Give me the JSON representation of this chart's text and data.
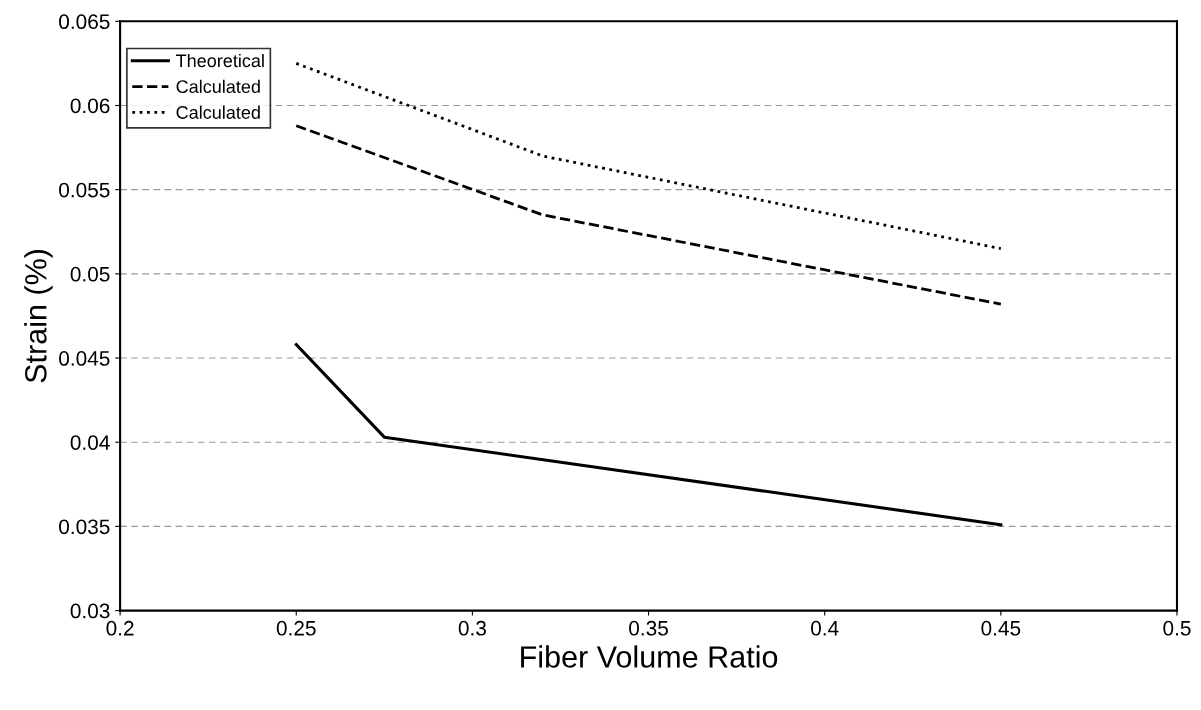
{
  "chart_data": {
    "type": "line",
    "xlabel": "Fiber Volume Ratio",
    "ylabel": "Strain (%)",
    "xlim": [
      0.2,
      0.5
    ],
    "xticks": [
      0.2,
      0.25,
      0.3,
      0.35,
      0.4,
      0.45,
      0.5
    ],
    "ylim": [
      0.03,
      0.065
    ],
    "yticks": [
      0.03,
      0.035,
      0.04,
      0.045,
      0.05,
      0.055,
      0.06,
      0.065
    ],
    "grid": "y",
    "legend": "top left",
    "marker": "none",
    "series": [
      {
        "name": "Theoretical",
        "color": "#000000",
        "line_style": "solid",
        "x": [
          0.25,
          0.275,
          0.45
        ],
        "values": [
          0.0458,
          0.0403,
          0.0351
        ]
      },
      {
        "name": "Calculated",
        "color": "#000000",
        "line_style": "dashed",
        "x": [
          0.25,
          0.32,
          0.45
        ],
        "values": [
          0.0588,
          0.0535,
          0.0482
        ]
      },
      {
        "name": "Calculated",
        "color": "#000000",
        "line_style": "dotted",
        "x": [
          0.25,
          0.32,
          0.45
        ],
        "values": [
          0.0625,
          0.057,
          0.0515
        ]
      }
    ]
  }
}
